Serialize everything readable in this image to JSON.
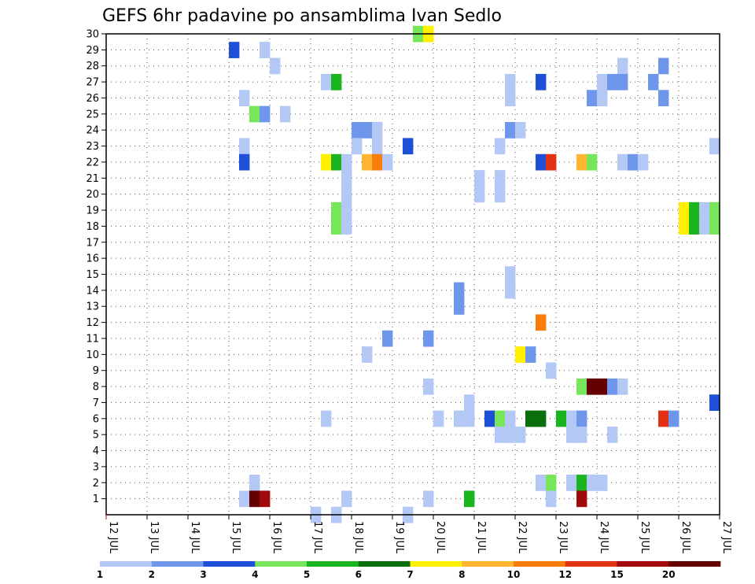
{
  "chart_data": {
    "type": "heatmap",
    "title": "GEFS 6hr padavine po ansamblima Ivan Sedlo",
    "xlabel": "",
    "ylabel": "",
    "x_tick_labels": [
      "12 JUL",
      "13 JUL",
      "14 JUL",
      "15 JUL",
      "16 JUL",
      "17 JUL",
      "18 JUL",
      "19 JUL",
      "20 JUL",
      "21 JUL",
      "22 JUL",
      "23 JUL",
      "24 JUL",
      "25 JUL",
      "26 JUL",
      "27 JUL"
    ],
    "y_tick_labels": [
      "1",
      "2",
      "3",
      "4",
      "5",
      "6",
      "7",
      "8",
      "9",
      "10",
      "11",
      "12",
      "13",
      "14",
      "15",
      "16",
      "17",
      "18",
      "19",
      "20",
      "21",
      "22",
      "23",
      "24",
      "25",
      "26",
      "27",
      "28",
      "29",
      "30"
    ],
    "x_range_days": [
      12.0,
      27.0
    ],
    "y_range": [
      0,
      30
    ],
    "step_hours": 6,
    "grid": true,
    "grid_style": "dotted",
    "levels": [
      {
        "min": 1,
        "max": 2,
        "color": "#b4c8f5"
      },
      {
        "min": 2,
        "max": 3,
        "color": "#6e96eb"
      },
      {
        "min": 3,
        "max": 4,
        "color": "#1e50d7"
      },
      {
        "min": 4,
        "max": 5,
        "color": "#78e65a"
      },
      {
        "min": 5,
        "max": 6,
        "color": "#19b41e"
      },
      {
        "min": 6,
        "max": 7,
        "color": "#0a6e0a"
      },
      {
        "min": 7,
        "max": 8,
        "color": "#fff000"
      },
      {
        "min": 8,
        "max": 10,
        "color": "#ffb432"
      },
      {
        "min": 10,
        "max": 12,
        "color": "#fa7d0a"
      },
      {
        "min": 12,
        "max": 15,
        "color": "#e13214"
      },
      {
        "min": 15,
        "max": 20,
        "color": "#a00a0a"
      },
      {
        "min": 20,
        "max": null,
        "color": "#640000"
      }
    ],
    "colorbar_labels": [
      "1",
      "2",
      "3",
      "4",
      "5",
      "6",
      "7",
      "8",
      "10",
      "12",
      "15",
      "20"
    ],
    "cells": [
      {
        "member": 30,
        "day": 19.5,
        "level": 4
      },
      {
        "member": 30,
        "day": 19.75,
        "level": 7
      },
      {
        "member": 29,
        "day": 15.0,
        "level": 3
      },
      {
        "member": 29,
        "day": 15.75,
        "level": 1
      },
      {
        "member": 28,
        "day": 16.0,
        "level": 1
      },
      {
        "member": 28,
        "day": 24.5,
        "level": 1
      },
      {
        "member": 28,
        "day": 25.5,
        "level": 2
      },
      {
        "member": 27,
        "day": 17.25,
        "level": 1
      },
      {
        "member": 27,
        "day": 17.5,
        "level": 5
      },
      {
        "member": 27,
        "day": 21.75,
        "level": 1
      },
      {
        "member": 27,
        "day": 22.5,
        "level": 3
      },
      {
        "member": 27,
        "day": 24.0,
        "level": 1
      },
      {
        "member": 27,
        "day": 24.25,
        "level": 2
      },
      {
        "member": 27,
        "day": 24.5,
        "level": 2
      },
      {
        "member": 27,
        "day": 25.25,
        "level": 2
      },
      {
        "member": 26,
        "day": 15.25,
        "level": 1
      },
      {
        "member": 26,
        "day": 21.75,
        "level": 1
      },
      {
        "member": 26,
        "day": 23.75,
        "level": 2
      },
      {
        "member": 26,
        "day": 24.0,
        "level": 1
      },
      {
        "member": 26,
        "day": 25.5,
        "level": 2
      },
      {
        "member": 25,
        "day": 15.5,
        "level": 4
      },
      {
        "member": 25,
        "day": 15.75,
        "level": 2
      },
      {
        "member": 25,
        "day": 16.25,
        "level": 1
      },
      {
        "member": 24,
        "day": 18.0,
        "level": 2
      },
      {
        "member": 24,
        "day": 18.25,
        "level": 2
      },
      {
        "member": 24,
        "day": 18.5,
        "level": 1
      },
      {
        "member": 24,
        "day": 21.75,
        "level": 2
      },
      {
        "member": 24,
        "day": 22.0,
        "level": 1
      },
      {
        "member": 23,
        "day": 15.25,
        "level": 1
      },
      {
        "member": 23,
        "day": 18.0,
        "level": 1
      },
      {
        "member": 23,
        "day": 18.5,
        "level": 1
      },
      {
        "member": 23,
        "day": 19.25,
        "level": 3
      },
      {
        "member": 23,
        "day": 21.5,
        "level": 1
      },
      {
        "member": 23,
        "day": 26.75,
        "level": 1
      },
      {
        "member": 22,
        "day": 15.25,
        "level": 3
      },
      {
        "member": 22,
        "day": 17.25,
        "level": 7
      },
      {
        "member": 22,
        "day": 17.5,
        "level": 5
      },
      {
        "member": 22,
        "day": 17.75,
        "level": 1
      },
      {
        "member": 22,
        "day": 18.25,
        "level": 8
      },
      {
        "member": 22,
        "day": 18.5,
        "level": 9
      },
      {
        "member": 22,
        "day": 18.75,
        "level": 1
      },
      {
        "member": 22,
        "day": 22.5,
        "level": 3
      },
      {
        "member": 22,
        "day": 22.75,
        "level": 10
      },
      {
        "member": 22,
        "day": 23.5,
        "level": 8
      },
      {
        "member": 22,
        "day": 23.75,
        "level": 4
      },
      {
        "member": 22,
        "day": 24.5,
        "level": 1
      },
      {
        "member": 22,
        "day": 24.75,
        "level": 2
      },
      {
        "member": 22,
        "day": 25.0,
        "level": 1
      },
      {
        "member": 21,
        "day": 17.75,
        "level": 1
      },
      {
        "member": 21,
        "day": 21.0,
        "level": 1
      },
      {
        "member": 21,
        "day": 21.5,
        "level": 1
      },
      {
        "member": 20,
        "day": 17.75,
        "level": 1
      },
      {
        "member": 20,
        "day": 21.0,
        "level": 1
      },
      {
        "member": 20,
        "day": 21.5,
        "level": 1
      },
      {
        "member": 19,
        "day": 17.5,
        "level": 4
      },
      {
        "member": 19,
        "day": 17.75,
        "level": 1
      },
      {
        "member": 19,
        "day": 26.0,
        "level": 7
      },
      {
        "member": 19,
        "day": 26.25,
        "level": 5
      },
      {
        "member": 19,
        "day": 26.5,
        "level": 1
      },
      {
        "member": 19,
        "day": 26.75,
        "level": 4
      },
      {
        "member": 18,
        "day": 17.5,
        "level": 4
      },
      {
        "member": 18,
        "day": 17.75,
        "level": 1
      },
      {
        "member": 18,
        "day": 26.0,
        "level": 7
      },
      {
        "member": 18,
        "day": 26.25,
        "level": 5
      },
      {
        "member": 18,
        "day": 26.5,
        "level": 1
      },
      {
        "member": 18,
        "day": 26.75,
        "level": 4
      },
      {
        "member": 15,
        "day": 21.75,
        "level": 1
      },
      {
        "member": 14,
        "day": 21.75,
        "level": 1
      },
      {
        "member": 14,
        "day": 20.5,
        "level": 2
      },
      {
        "member": 13,
        "day": 20.5,
        "level": 2
      },
      {
        "member": 12,
        "day": 22.5,
        "level": 9
      },
      {
        "member": 11,
        "day": 18.75,
        "level": 2
      },
      {
        "member": 11,
        "day": 19.75,
        "level": 2
      },
      {
        "member": 10,
        "day": 18.25,
        "level": 1
      },
      {
        "member": 10,
        "day": 22.0,
        "level": 7
      },
      {
        "member": 10,
        "day": 22.25,
        "level": 2
      },
      {
        "member": 9,
        "day": 22.75,
        "level": 1
      },
      {
        "member": 8,
        "day": 19.75,
        "level": 1
      },
      {
        "member": 8,
        "day": 23.5,
        "level": 4
      },
      {
        "member": 8,
        "day": 23.75,
        "level": 12
      },
      {
        "member": 8,
        "day": 24.0,
        "level": 12
      },
      {
        "member": 8,
        "day": 24.25,
        "level": 2
      },
      {
        "member": 8,
        "day": 24.5,
        "level": 1
      },
      {
        "member": 7,
        "day": 20.75,
        "level": 1
      },
      {
        "member": 7,
        "day": 26.75,
        "level": 3
      },
      {
        "member": 6,
        "day": 17.25,
        "level": 1
      },
      {
        "member": 6,
        "day": 20.0,
        "level": 1
      },
      {
        "member": 6,
        "day": 20.5,
        "level": 1
      },
      {
        "member": 6,
        "day": 20.75,
        "level": 1
      },
      {
        "member": 6,
        "day": 21.25,
        "level": 3
      },
      {
        "member": 6,
        "day": 21.5,
        "level": 4
      },
      {
        "member": 6,
        "day": 21.75,
        "level": 1
      },
      {
        "member": 6,
        "day": 22.25,
        "level": 6
      },
      {
        "member": 6,
        "day": 22.5,
        "level": 6
      },
      {
        "member": 6,
        "day": 23.0,
        "level": 5
      },
      {
        "member": 6,
        "day": 23.25,
        "level": 1
      },
      {
        "member": 6,
        "day": 23.5,
        "level": 2
      },
      {
        "member": 6,
        "day": 25.5,
        "level": 10
      },
      {
        "member": 6,
        "day": 25.75,
        "level": 2
      },
      {
        "member": 5,
        "day": 21.5,
        "level": 1
      },
      {
        "member": 5,
        "day": 21.75,
        "level": 1
      },
      {
        "member": 5,
        "day": 22.0,
        "level": 1
      },
      {
        "member": 5,
        "day": 23.25,
        "level": 1
      },
      {
        "member": 5,
        "day": 23.5,
        "level": 1
      },
      {
        "member": 5,
        "day": 24.25,
        "level": 1
      },
      {
        "member": 2,
        "day": 15.5,
        "level": 1
      },
      {
        "member": 2,
        "day": 22.5,
        "level": 1
      },
      {
        "member": 2,
        "day": 22.75,
        "level": 4
      },
      {
        "member": 2,
        "day": 23.25,
        "level": 1
      },
      {
        "member": 2,
        "day": 23.5,
        "level": 5
      },
      {
        "member": 2,
        "day": 23.75,
        "level": 1
      },
      {
        "member": 2,
        "day": 24.0,
        "level": 1
      },
      {
        "member": 1,
        "day": 15.25,
        "level": 1
      },
      {
        "member": 1,
        "day": 15.5,
        "level": 12
      },
      {
        "member": 1,
        "day": 15.75,
        "level": 11
      },
      {
        "member": 1,
        "day": 17.75,
        "level": 1
      },
      {
        "member": 1,
        "day": 19.75,
        "level": 1
      },
      {
        "member": 1,
        "day": 20.75,
        "level": 5
      },
      {
        "member": 1,
        "day": 22.75,
        "level": 1
      },
      {
        "member": 1,
        "day": 23.5,
        "level": 11
      },
      {
        "member": 0,
        "day": 17.0,
        "level": 1
      },
      {
        "member": 0,
        "day": 17.5,
        "level": 1
      },
      {
        "member": 0,
        "day": 19.25,
        "level": 1
      }
    ]
  }
}
